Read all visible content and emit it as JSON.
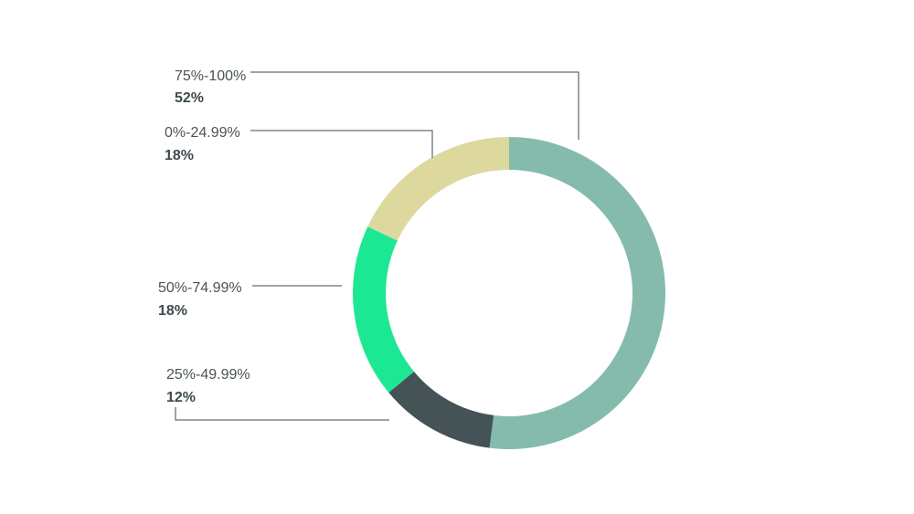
{
  "chart_data": {
    "type": "pie",
    "style": "donut",
    "title": "",
    "slices": [
      {
        "label": "75%-100%",
        "value": 52,
        "value_label": "52%",
        "color": "#84bbad"
      },
      {
        "label": "25%-49.99%",
        "value": 12,
        "value_label": "12%",
        "color": "#455356"
      },
      {
        "label": "50%-74.99%",
        "value": 18,
        "value_label": "18%",
        "color": "#1ce893"
      },
      {
        "label": "0%-24.99%",
        "value": 18,
        "value_label": "18%",
        "color": "#dcd89e"
      }
    ],
    "start": "top",
    "direction": "clockwise",
    "legend": "none",
    "labels": "outside-left-with-leader-lines"
  }
}
